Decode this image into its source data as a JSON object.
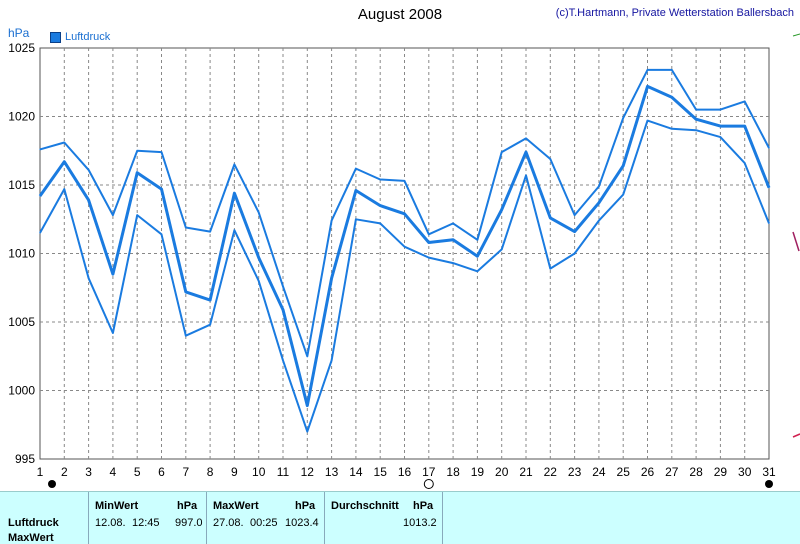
{
  "header": {
    "title": "August 2008",
    "copyright": "(c)T.Hartmann, Private Wetterstation Ballersbach",
    "unit_label": "hPa",
    "legend_label": "Luftdruck"
  },
  "colors": {
    "series": "#1a7be0",
    "grid": "#888888",
    "stats_bg": "#ccffff"
  },
  "chart_data": {
    "type": "line",
    "title": "August 2008",
    "ylabel": "hPa",
    "xlabel": "",
    "x": [
      1,
      2,
      3,
      4,
      5,
      6,
      7,
      8,
      9,
      10,
      11,
      12,
      13,
      14,
      15,
      16,
      17,
      18,
      19,
      20,
      21,
      22,
      23,
      24,
      25,
      26,
      27,
      28,
      29,
      30,
      31
    ],
    "y_ticks": [
      995,
      1000,
      1005,
      1010,
      1015,
      1020,
      1025
    ],
    "ylim": [
      995,
      1025
    ],
    "grid": true,
    "legend": "top-left",
    "series": [
      {
        "name": "Luftdruck",
        "role": "mean",
        "values": [
          1014.2,
          1016.7,
          1013.9,
          1008.5,
          1015.9,
          1014.7,
          1007.2,
          1006.6,
          1014.4,
          1009.7,
          1005.9,
          998.9,
          1008.2,
          1014.6,
          1013.5,
          1012.9,
          1010.8,
          1011.0,
          1009.8,
          1013.2,
          1017.4,
          1012.6,
          1011.6,
          1013.7,
          1016.4,
          1022.2,
          1021.4,
          1019.8,
          1019.3,
          1019.3,
          1014.8
        ]
      },
      {
        "role": "max",
        "values": [
          1017.6,
          1018.1,
          1016.1,
          1012.8,
          1017.5,
          1017.4,
          1011.9,
          1011.6,
          1016.5,
          1013.0,
          1007.6,
          1002.5,
          1012.4,
          1016.2,
          1015.4,
          1015.3,
          1011.4,
          1012.2,
          1011.0,
          1017.4,
          1018.4,
          1016.9,
          1012.8,
          1014.9,
          1019.9,
          1023.4,
          1023.4,
          1020.5,
          1020.5,
          1021.1,
          1017.7
        ]
      },
      {
        "role": "min",
        "values": [
          1011.5,
          1014.7,
          1008.2,
          1004.2,
          1012.8,
          1011.4,
          1004.0,
          1004.8,
          1011.7,
          1008.0,
          1002.2,
          997.0,
          1002.2,
          1012.5,
          1012.2,
          1010.5,
          1009.7,
          1009.3,
          1008.7,
          1010.3,
          1015.7,
          1008.9,
          1010.0,
          1012.4,
          1014.3,
          1019.7,
          1019.1,
          1019.0,
          1018.5,
          1016.6,
          1012.2
        ]
      }
    ]
  },
  "stats": {
    "row_labels": [
      "Luftdruck",
      "MaxWert"
    ],
    "min": {
      "header": "MinWert",
      "unit": "hPa",
      "date": "12.08.",
      "time": "12:45",
      "value": "997.0"
    },
    "max": {
      "header": "MaxWert",
      "unit": "hPa",
      "date": "27.08.",
      "time": "00:25",
      "value": "1023.4"
    },
    "avg": {
      "header": "Durchschnitt",
      "unit": "hPa",
      "value": "1013.2"
    }
  }
}
